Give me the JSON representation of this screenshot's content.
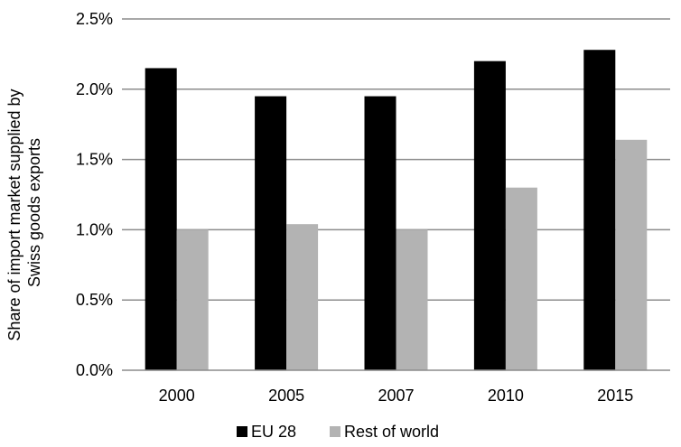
{
  "chart_data": {
    "type": "bar",
    "title": "",
    "categories": [
      "2000",
      "2005",
      "2007",
      "2010",
      "2015"
    ],
    "series": [
      {
        "name": "EU 28",
        "color": "#000000",
        "values": [
          2.15,
          1.95,
          1.95,
          2.2,
          2.28
        ]
      },
      {
        "name": "Rest of world",
        "color": "#b3b3b3",
        "values": [
          1.0,
          1.04,
          1.0,
          1.3,
          1.64
        ]
      }
    ],
    "ylabel_lines": [
      "Share of import market supplied by",
      "Swiss goods exports"
    ],
    "ylim": [
      0,
      2.5
    ],
    "yticks": [
      {
        "value": 0.0,
        "label": "0.0%"
      },
      {
        "value": 0.5,
        "label": "0.5%"
      },
      {
        "value": 1.0,
        "label": "1.0%"
      },
      {
        "value": 1.5,
        "label": "1.5%"
      },
      {
        "value": 2.0,
        "label": "2.0%"
      },
      {
        "value": 2.5,
        "label": "2.5%"
      }
    ],
    "grid": true,
    "legend_position": "bottom"
  }
}
